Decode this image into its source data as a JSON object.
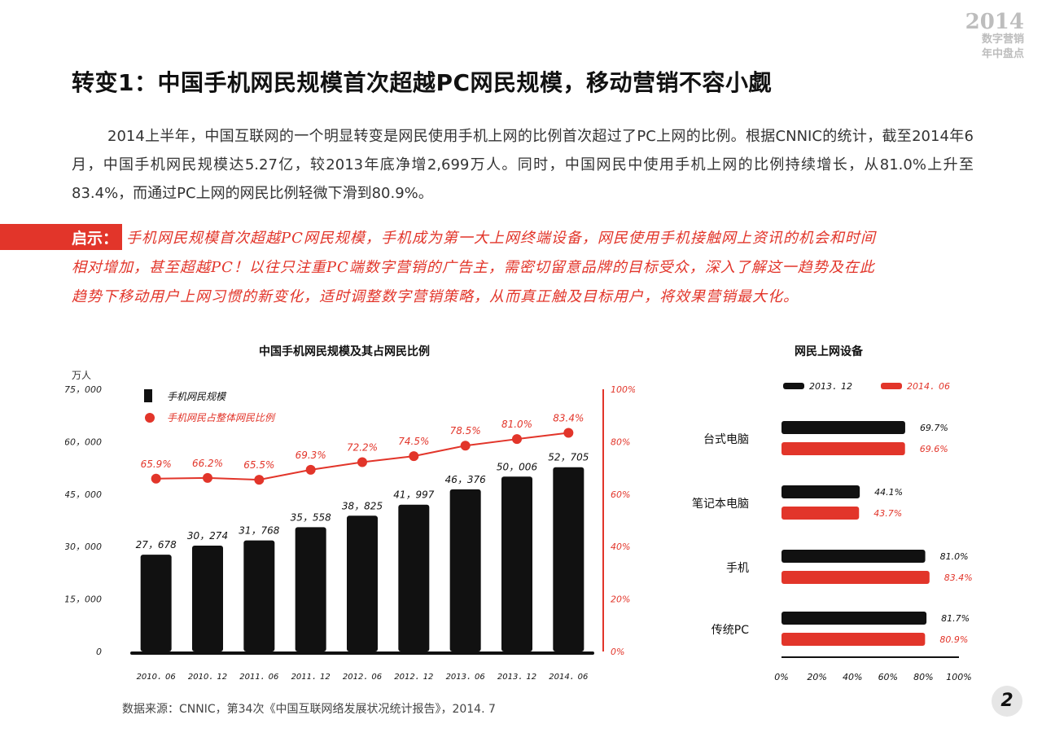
{
  "corner": {
    "year": "2014",
    "line1": "数字营销",
    "line2": "年中盘点"
  },
  "title": "转变1：中国手机网民规模首次超越PC网民规模，移动营销不容小觑",
  "paragraph": "2014上半年，中国互联网的一个明显转变是网民使用手机上网的比例首次超过了PC上网的比例。根据CNNIC的统计，截至2014年6月，中国手机网民规模达5.27亿，较2013年底净增2,699万人。同时，中国网民中使用手机上网的比例持续增长，从81.0%上升至83.4%，而通过PC上网的网民比例轻微下滑到80.9%。",
  "tip": {
    "label": "启示：",
    "line1": "手机网民规模首次超越PC网民规模，手机成为第一大上网终端设备，网民使用手机接触网上资讯的机会和时间",
    "line2": "相对增加，甚至超越PC！以往只注重PC端数字营销的广告主，需密切留意品牌的目标受众，深入了解这一趋势及在此",
    "line3": "趋势下移动用户上网习惯的新变化，适时调整数字营销策略，从而真正触及目标用户，将效果营销最大化。"
  },
  "source": "数据来源：CNNIC，第34次《中国互联网络发展状况统计报告》，2014. 7",
  "page_number": "2",
  "colors": {
    "accent": "#e2352a",
    "ink": "#111111"
  },
  "chart_data": [
    {
      "type": "bar",
      "title": "中国手机网民规模及其占网民比例",
      "ylabel": "万人",
      "categories": [
        "2010．06",
        "2010．12",
        "2011．06",
        "2011．12",
        "2012．06",
        "2012．12",
        "2013．06",
        "2013．12",
        "2014．06"
      ],
      "series": [
        {
          "name": "手机网民规模",
          "type": "bar",
          "axis": "left",
          "values": [
            27678,
            30274,
            31768,
            35558,
            38825,
            41997,
            46376,
            50006,
            52705
          ],
          "labels": [
            "27，678",
            "30，274",
            "31，768",
            "35，558",
            "38，825",
            "41，997",
            "46，376",
            "50，006",
            "52，705"
          ]
        },
        {
          "name": "手机网民占整体网民比例",
          "type": "line",
          "axis": "right",
          "values": [
            65.9,
            66.2,
            65.5,
            69.3,
            72.2,
            74.5,
            78.5,
            81.0,
            83.4
          ],
          "labels": [
            "65.9%",
            "66.2%",
            "65.5%",
            "69.3%",
            "72.2%",
            "74.5%",
            "78.5%",
            "81.0%",
            "83.4%"
          ]
        }
      ],
      "ylim": [
        0,
        75000
      ],
      "y2lim": [
        0,
        100
      ],
      "yticks": [
        "0",
        "15，000",
        "30，000",
        "45，000",
        "60，000",
        "75，000"
      ],
      "y2ticks": [
        "0%",
        "20%",
        "40%",
        "60%",
        "80%",
        "100%"
      ]
    },
    {
      "type": "bar",
      "orientation": "horizontal",
      "title": "网民上网设备",
      "categories": [
        "台式电脑",
        "笔记本电脑",
        "手机",
        "传统PC"
      ],
      "series": [
        {
          "name": "2013．12",
          "values": [
            69.7,
            44.1,
            81.0,
            81.7
          ],
          "labels": [
            "69.7%",
            "44.1%",
            "81.0%",
            "81.7%"
          ]
        },
        {
          "name": "2014．06",
          "values": [
            69.6,
            43.7,
            83.4,
            80.9
          ],
          "labels": [
            "69.6%",
            "43.7%",
            "83.4%",
            "80.9%"
          ]
        }
      ],
      "xlim": [
        0,
        100
      ],
      "xticks": [
        "0%",
        "20%",
        "40%",
        "60%",
        "80%",
        "100%"
      ]
    }
  ]
}
